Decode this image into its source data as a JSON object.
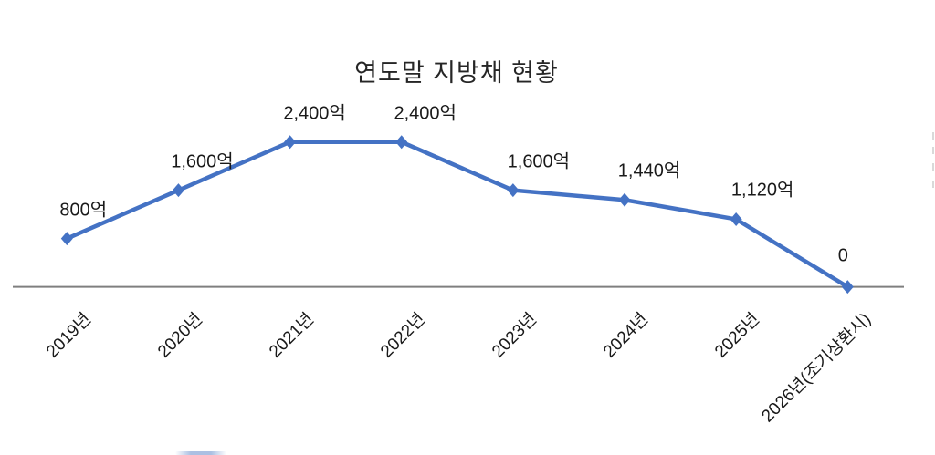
{
  "chart_data": {
    "type": "line",
    "title": "연도말 지방채 현황",
    "categories": [
      "2019년",
      "2020년",
      "2021년",
      "2022년",
      "2023년",
      "2024년",
      "2025년",
      "2026년(조기상환시)"
    ],
    "values": [
      800,
      1600,
      2400,
      2400,
      1600,
      1440,
      1120,
      0
    ],
    "data_labels": [
      "800억",
      "1,600억",
      "2,400억",
      "2,400억",
      "1,600억",
      "1,440억",
      "1,120억",
      "0"
    ],
    "unit": "억",
    "ylim": [
      0,
      2400
    ],
    "grid": false,
    "marker": "diamond",
    "line_color": "#4472C4",
    "axis_color": "#7f7f7f",
    "label_color": "#1a1a1a",
    "x_label_rotation_deg": 45,
    "legend_position": "bottom-cut-off"
  }
}
